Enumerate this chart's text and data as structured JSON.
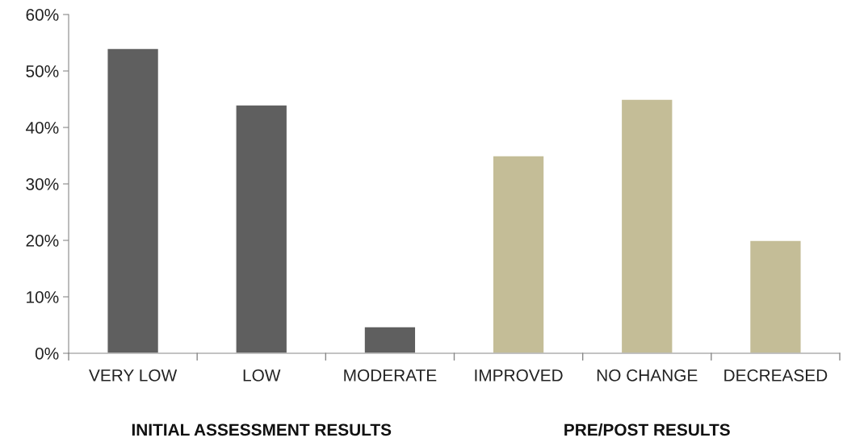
{
  "chart_data": {
    "type": "bar",
    "categories": [
      "VERY LOW",
      "LOW",
      "MODERATE",
      "IMPROVED",
      "NO CHANGE",
      "DECREASED"
    ],
    "values": [
      54,
      44,
      4.7,
      35,
      45,
      20
    ],
    "colors": [
      "#5f5f5f",
      "#5f5f5f",
      "#5f5f5f",
      "#c4bd97",
      "#c4bd97",
      "#c4bd97"
    ],
    "ylim": [
      0,
      60
    ],
    "yticks": [
      {
        "value": 0,
        "label": "0%"
      },
      {
        "value": 10,
        "label": "10%"
      },
      {
        "value": 20,
        "label": "20%"
      },
      {
        "value": 30,
        "label": "30%"
      },
      {
        "value": 40,
        "label": "40%"
      },
      {
        "value": 50,
        "label": "50%"
      },
      {
        "value": 60,
        "label": "60%"
      }
    ],
    "annotations": [
      "INITIAL ASSESSMENT RESULTS",
      "PRE/POST RESULTS"
    ],
    "grid": false,
    "legend": false
  }
}
